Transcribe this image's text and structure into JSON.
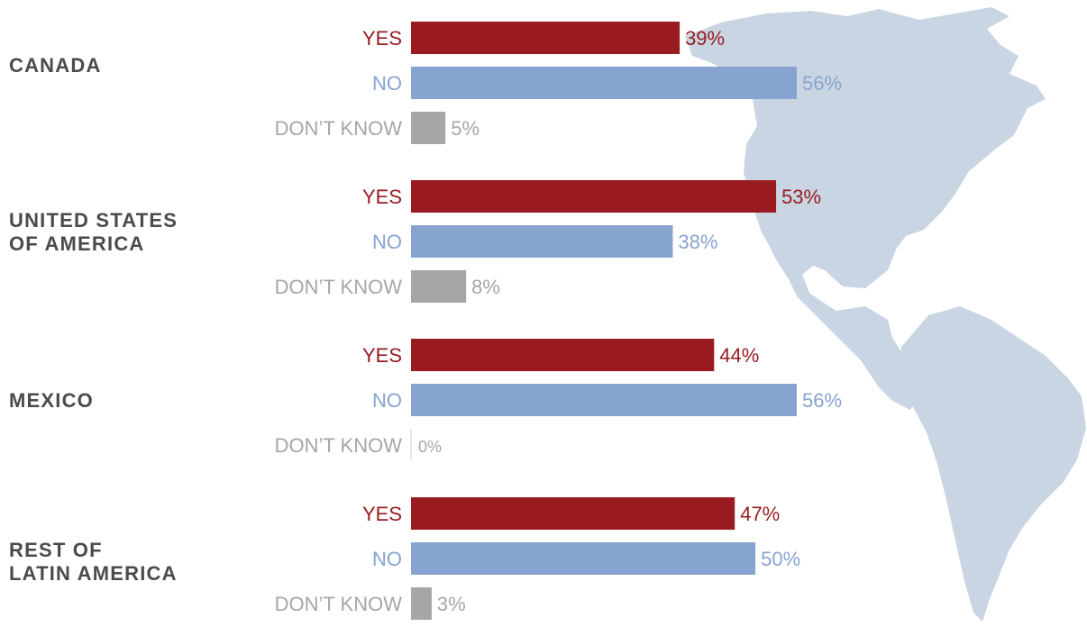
{
  "chart_data": {
    "type": "bar",
    "orientation": "horizontal",
    "groups": [
      {
        "label_lines": [
          "CANADA"
        ],
        "values": {
          "yes": 39,
          "no": 56,
          "dont_know": 5
        }
      },
      {
        "label_lines": [
          "UNITED STATES",
          "OF AMERICA"
        ],
        "values": {
          "yes": 53,
          "no": 38,
          "dont_know": 8
        }
      },
      {
        "label_lines": [
          "MEXICO"
        ],
        "values": {
          "yes": 44,
          "no": 56,
          "dont_know": 0
        }
      },
      {
        "label_lines": [
          "REST OF",
          "LATIN AMERICA"
        ],
        "values": {
          "yes": 47,
          "no": 50,
          "dont_know": 3
        }
      }
    ],
    "series": [
      {
        "key": "yes",
        "name": "YES",
        "color": "#991b1f"
      },
      {
        "key": "no",
        "name": "NO",
        "color": "#87a4d0"
      },
      {
        "key": "dont_know",
        "name": "DON’T KNOW",
        "color": "#a6a6a9"
      }
    ],
    "value_suffix": "%",
    "xlim": [
      0,
      56
    ],
    "grid": false,
    "background": "map of the Americas",
    "map_color": "#c9d5e2",
    "group_label_color": "#4a4a4f"
  }
}
